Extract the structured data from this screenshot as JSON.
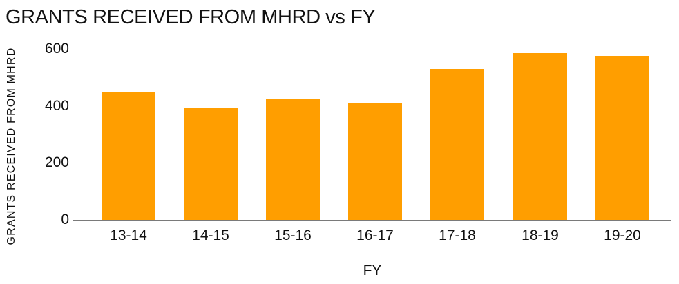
{
  "chart_data": {
    "type": "bar",
    "title": "GRANTS RECEIVED FROM MHRD vs FY",
    "xlabel": "FY",
    "ylabel": "GRANTS RECEIVED FROM MHRD",
    "categories": [
      "13-14",
      "14-15",
      "15-16",
      "16-17",
      "17-18",
      "18-19",
      "19-20"
    ],
    "values": [
      450,
      395,
      425,
      410,
      530,
      585,
      575
    ],
    "yticks": [
      0,
      200,
      400,
      600
    ],
    "ylim": [
      0,
      600
    ],
    "grid": false,
    "legend": false,
    "bar_color": "#FF9E00",
    "axis_line_color": "#7A7A7A",
    "text_color": "#111111",
    "background_color": "#FFFFFF"
  }
}
